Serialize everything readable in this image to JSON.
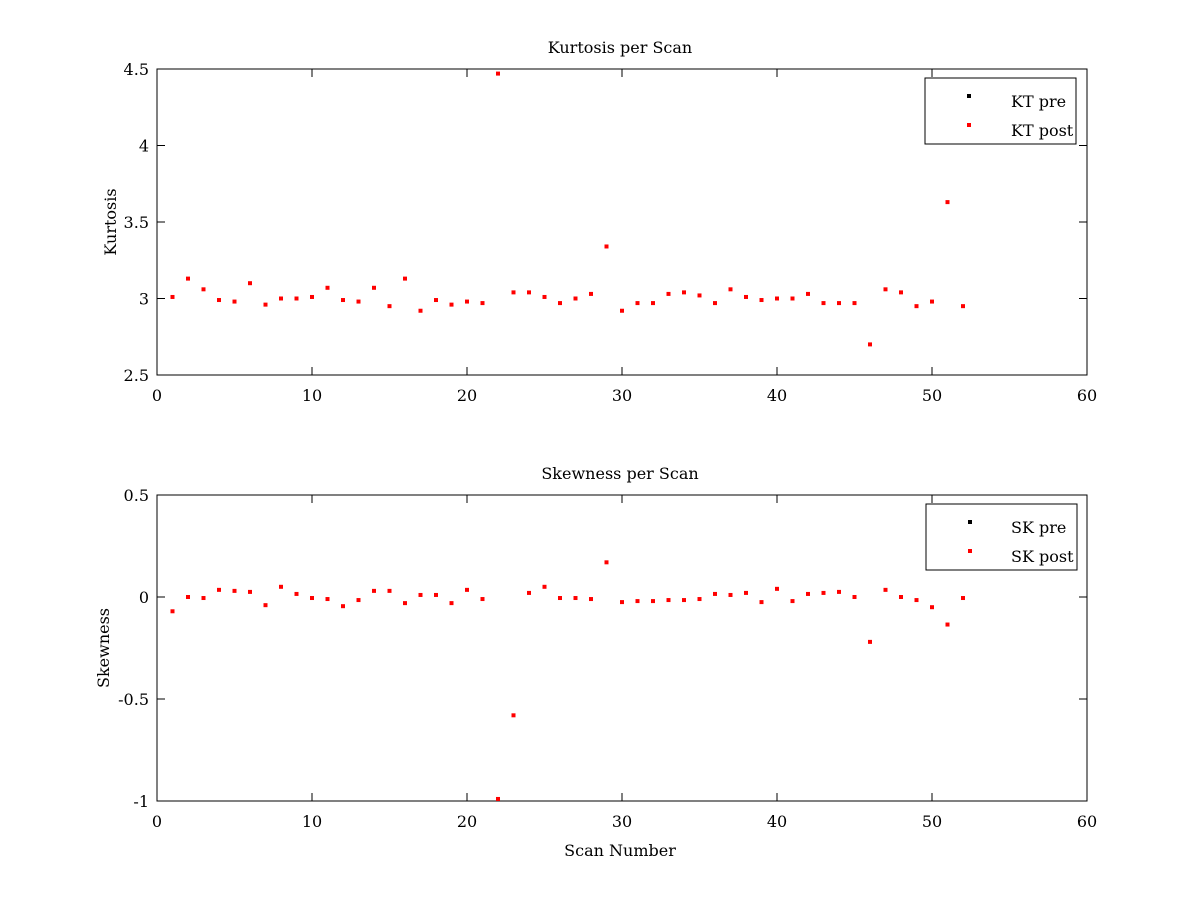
{
  "chart_data": [
    {
      "type": "scatter",
      "title": "Kurtosis per Scan",
      "xlabel": "",
      "ylabel": "Kurtosis",
      "xlim": [
        0,
        60
      ],
      "ylim": [
        2.5,
        4.5
      ],
      "xticks": [
        0,
        10,
        20,
        30,
        40,
        50,
        60
      ],
      "yticks": [
        2.5,
        3,
        3.5,
        4,
        4.5
      ],
      "xtick_labels": [
        "0",
        "10",
        "20",
        "30",
        "40",
        "50",
        "60"
      ],
      "ytick_labels": [
        "2.5",
        "3",
        "3.5",
        "4",
        "4.5"
      ],
      "grid": false,
      "legend_position": "top-right",
      "series": [
        {
          "name": "KT pre",
          "color": "#000000",
          "x": [],
          "y": []
        },
        {
          "name": "KT post",
          "color": "#ff0000",
          "x": [
            1,
            2,
            3,
            4,
            5,
            6,
            7,
            8,
            9,
            10,
            11,
            12,
            13,
            14,
            15,
            16,
            17,
            18,
            19,
            20,
            21,
            22,
            23,
            24,
            25,
            26,
            27,
            28,
            29,
            30,
            31,
            32,
            33,
            34,
            35,
            36,
            37,
            38,
            39,
            40,
            41,
            42,
            43,
            44,
            45,
            46,
            47,
            48,
            49,
            50,
            51,
            52
          ],
          "y": [
            3.01,
            3.13,
            3.06,
            2.99,
            2.98,
            3.1,
            2.96,
            3.0,
            3.0,
            3.01,
            3.07,
            2.99,
            2.98,
            3.07,
            2.95,
            3.13,
            2.92,
            2.99,
            2.96,
            2.98,
            2.97,
            4.47,
            3.04,
            3.04,
            3.01,
            2.97,
            3.0,
            3.03,
            3.34,
            2.92,
            2.97,
            2.97,
            3.03,
            3.04,
            3.02,
            2.97,
            3.06,
            3.01,
            2.99,
            3.0,
            3.0,
            3.03,
            2.97,
            2.97,
            2.97,
            2.7,
            3.06,
            3.04,
            2.95,
            2.98,
            3.63,
            2.95
          ]
        }
      ]
    },
    {
      "type": "scatter",
      "title": "Skewness per Scan",
      "xlabel": "Scan Number",
      "ylabel": "Skewness",
      "xlim": [
        0,
        60
      ],
      "ylim": [
        -1,
        0.5
      ],
      "xticks": [
        0,
        10,
        20,
        30,
        40,
        50,
        60
      ],
      "yticks": [
        -1,
        -0.5,
        0,
        0.5
      ],
      "xtick_labels": [
        "0",
        "10",
        "20",
        "30",
        "40",
        "50",
        "60"
      ],
      "ytick_labels": [
        "-1",
        "-0.5",
        "0",
        "0.5"
      ],
      "grid": false,
      "legend_position": "top-right",
      "series": [
        {
          "name": "SK pre",
          "color": "#000000",
          "x": [],
          "y": []
        },
        {
          "name": "SK post",
          "color": "#ff0000",
          "x": [
            1,
            2,
            3,
            4,
            5,
            6,
            7,
            8,
            9,
            10,
            11,
            12,
            13,
            14,
            15,
            16,
            17,
            18,
            19,
            20,
            21,
            22,
            23,
            24,
            25,
            26,
            27,
            28,
            29,
            30,
            31,
            32,
            33,
            34,
            35,
            36,
            37,
            38,
            39,
            40,
            41,
            42,
            43,
            44,
            45,
            46,
            47,
            48,
            49,
            50,
            51,
            52
          ],
          "y": [
            -0.07,
            0.0,
            -0.005,
            0.035,
            0.03,
            0.025,
            -0.04,
            0.05,
            0.015,
            -0.005,
            -0.01,
            -0.045,
            -0.015,
            0.03,
            0.03,
            -0.03,
            0.01,
            0.01,
            -0.03,
            0.035,
            -0.01,
            -0.99,
            -0.58,
            0.02,
            0.05,
            -0.005,
            -0.005,
            -0.01,
            0.17,
            -0.025,
            -0.02,
            -0.02,
            -0.015,
            -0.015,
            -0.01,
            0.015,
            0.01,
            0.02,
            -0.025,
            0.04,
            -0.02,
            0.015,
            0.02,
            0.025,
            0.0,
            -0.22,
            0.035,
            0.0,
            -0.015,
            -0.05,
            -0.135,
            -0.005
          ]
        }
      ]
    }
  ]
}
